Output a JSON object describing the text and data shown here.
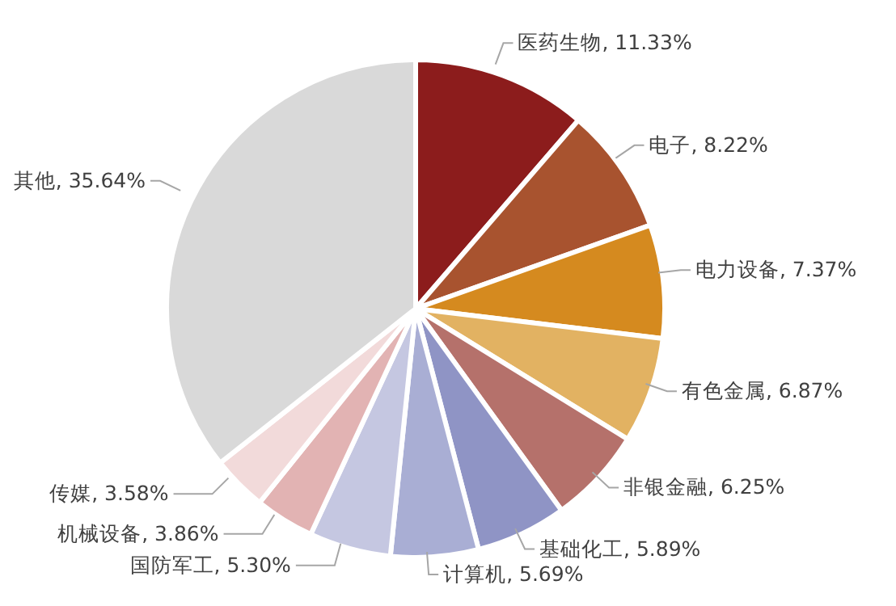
{
  "chart_data": {
    "type": "pie",
    "categories": [
      "医药生物",
      "电子",
      "电力设备",
      "有色金属",
      "非银金融",
      "基础化工",
      "计算机",
      "国防军工",
      "机械设备",
      "传媒",
      "其他"
    ],
    "values": [
      11.33,
      8.22,
      7.37,
      6.87,
      6.25,
      5.89,
      5.69,
      5.3,
      3.86,
      3.58,
      35.64
    ],
    "value_labels": [
      "11.33%",
      "8.22%",
      "7.37%",
      "6.87%",
      "6.25%",
      "5.89%",
      "5.69%",
      "5.30%",
      "3.86%",
      "3.58%",
      "35.64%"
    ],
    "colors": [
      "#8c1c1c",
      "#a8532f",
      "#d58a1f",
      "#e2b262",
      "#b5716b",
      "#8f94c5",
      "#a9aed4",
      "#c5c7e1",
      "#e2b3b3",
      "#f2dada",
      "#d9d9d9"
    ]
  }
}
